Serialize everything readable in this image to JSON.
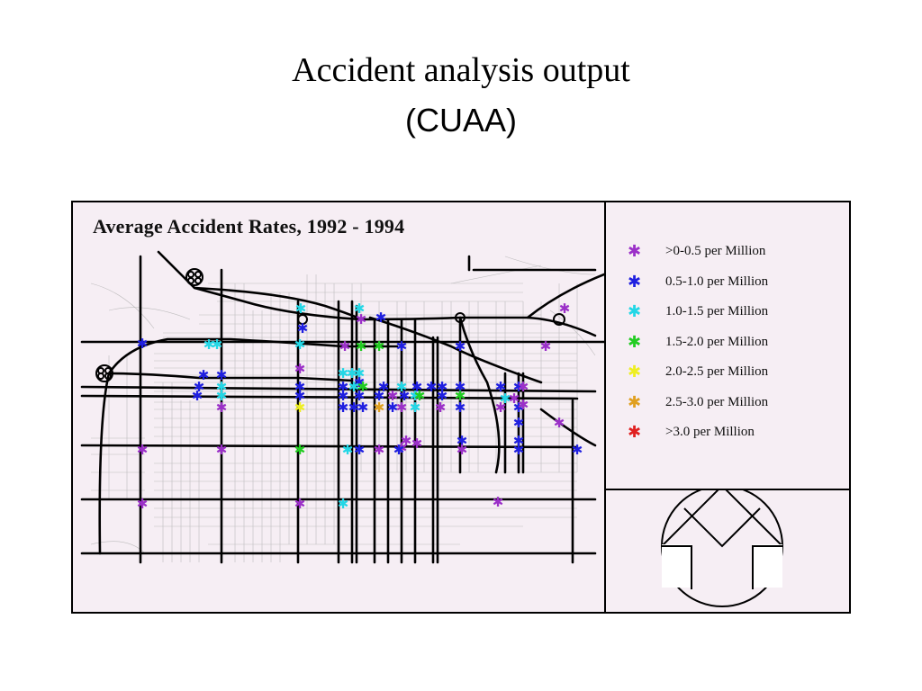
{
  "slide": {
    "title": "Accident analysis output",
    "subtitle": "(CUAA)"
  },
  "map": {
    "title": "Average Accident Rates, 1992 - 1994"
  },
  "legend": {
    "items": [
      {
        "label": ">0-0.5 per Million",
        "color": "#9b30c8"
      },
      {
        "label": "0.5-1.0 per Million",
        "color": "#1f1fe0"
      },
      {
        "label": "1.0-1.5 per Million",
        "color": "#23d7e6"
      },
      {
        "label": "1.5-2.0 per Million",
        "color": "#22cc22"
      },
      {
        "label": "2.0-2.5 per Million",
        "color": "#eeee22"
      },
      {
        "label": "2.5-3.0 per Million",
        "color": "#e0a020"
      },
      {
        "label": ">3.0 per Million",
        "color": "#e02020"
      }
    ]
  },
  "north_arrow": {
    "icon": "north-arrow-icon"
  },
  "colors": {
    "background": "#f6eef4",
    "road": "#000000"
  }
}
